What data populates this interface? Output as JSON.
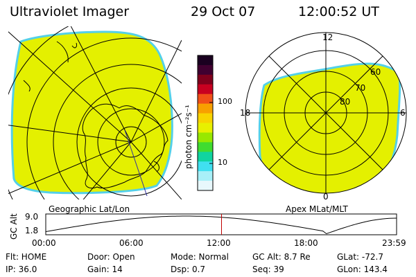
{
  "header": {
    "instrument": "Ultraviolet Imager",
    "date": "29 Oct 07",
    "time": "12:00:52 UT"
  },
  "left_panel": {
    "label": "Geographic Lat/Lon",
    "fill_color": "#e4f000",
    "edge_color": "#54d0e8"
  },
  "right_panel": {
    "label": "Apex  MLat/MLT",
    "mlt_labels": [
      "12",
      "18",
      "6",
      "0"
    ],
    "lat_labels": [
      "60",
      "70",
      "80"
    ],
    "fill_color": "#e4f000",
    "edge_color": "#54d0e8"
  },
  "colorbar": {
    "unit_label": "photon cm⁻²s⁻¹",
    "tick_labels": [
      "100",
      "10"
    ],
    "colors": [
      "#1a0020",
      "#400030",
      "#80001c",
      "#c80020",
      "#f05018",
      "#f8a000",
      "#f8d400",
      "#e8f000",
      "#98e800",
      "#40dc30",
      "#10d4a0",
      "#40e0f0",
      "#a8f0f8",
      "#e8f8fc"
    ]
  },
  "timeline": {
    "ylabel": "GC Alt",
    "ymax_label": "9.0",
    "ymin_label": "1.8",
    "x_ticks": [
      "00:00",
      "06:00",
      "12:00",
      "18:00",
      "23:59"
    ],
    "current_time_fraction": 0.501,
    "curve_color": "#000000",
    "marker_color": "#c00000"
  },
  "status": {
    "flt": "Flt: HOME",
    "ip": "IP: 36.0",
    "door": "Door: Open",
    "gain": "Gain: 14",
    "mode": "Mode: Normal",
    "dsp": "Dsp:    0.7",
    "gcalt": "GC Alt: 8.7 Re",
    "seq": "Seq: 39",
    "glat": "GLat: -72.7",
    "glon": "GLon: 143.4"
  }
}
